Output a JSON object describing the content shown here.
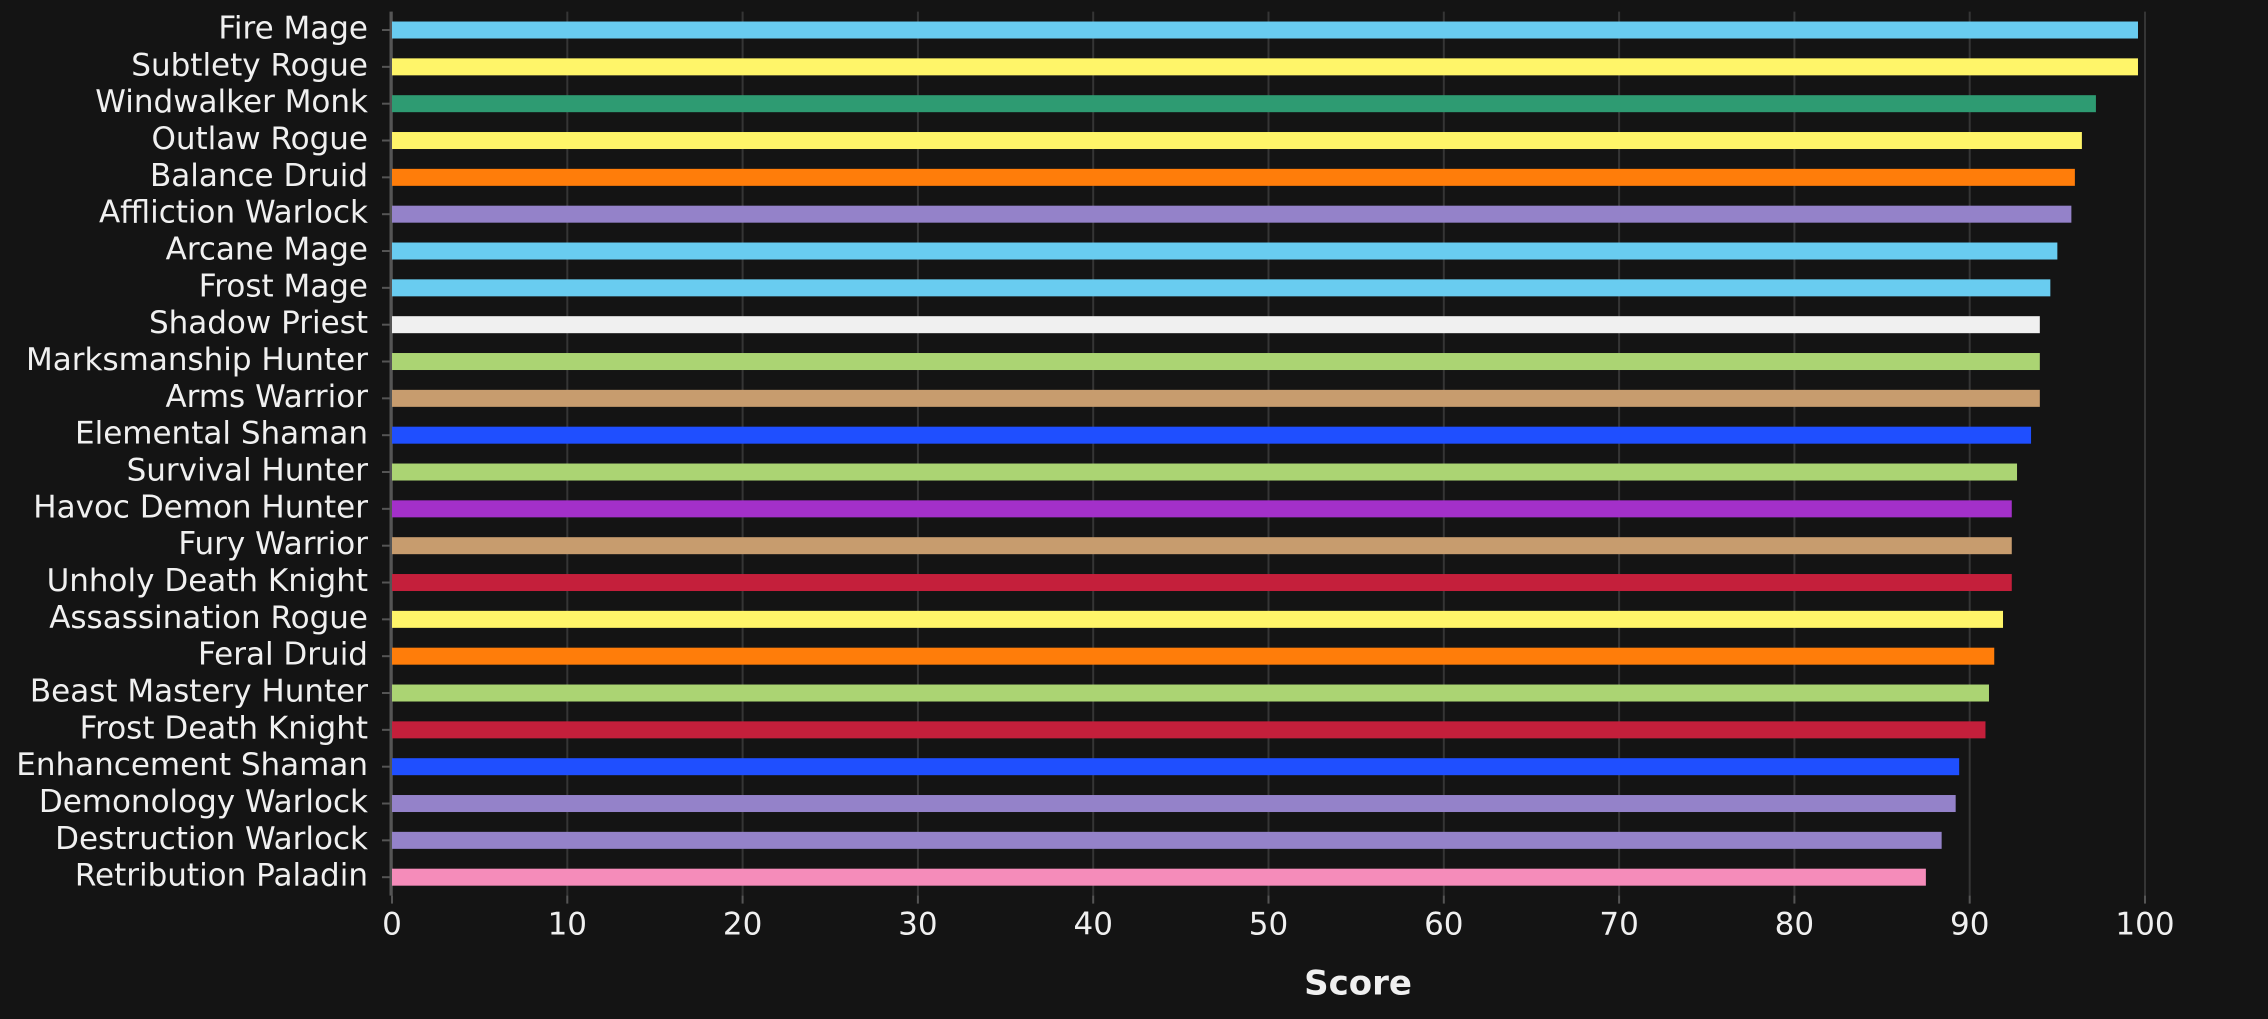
{
  "chart_data": {
    "type": "bar",
    "orientation": "horizontal",
    "x_label": "Score",
    "categories": [
      "Fire Mage",
      "Subtlety Rogue",
      "Windwalker Monk",
      "Outlaw Rogue",
      "Balance Druid",
      "Affliction Warlock",
      "Arcane Mage",
      "Frost Mage",
      "Shadow Priest",
      "Marksmanship Hunter",
      "Arms Warrior",
      "Elemental Shaman",
      "Survival Hunter",
      "Havoc Demon Hunter",
      "Fury Warrior",
      "Unholy Death Knight",
      "Assassination Rogue",
      "Feral Druid",
      "Beast Mastery Hunter",
      "Frost Death Knight",
      "Enhancement Shaman",
      "Demonology Warlock",
      "Destruction Warlock",
      "Retribution Paladin"
    ],
    "values": [
      99.6,
      99.6,
      97.2,
      96.4,
      96.0,
      95.8,
      95.0,
      94.6,
      94.0,
      94.0,
      94.0,
      93.5,
      92.7,
      92.4,
      92.4,
      92.4,
      91.9,
      91.4,
      91.1,
      90.9,
      89.4,
      89.2,
      88.4,
      87.5
    ],
    "colors": [
      "#69ccf0",
      "#fff569",
      "#2e9b72",
      "#fff569",
      "#ff7d0a",
      "#9482c9",
      "#69ccf0",
      "#69ccf0",
      "#f0f0f0",
      "#abd473",
      "#c79c6e",
      "#1f4fff",
      "#abd473",
      "#a330c9",
      "#c79c6e",
      "#c41f3b",
      "#fff569",
      "#ff7d0a",
      "#abd473",
      "#c41f3b",
      "#1f4fff",
      "#9482c9",
      "#9482c9",
      "#f58cba"
    ],
    "xlim": [
      0,
      100
    ],
    "xticks": [
      0,
      10,
      20,
      30,
      40,
      50,
      60,
      70,
      80,
      90,
      100
    ],
    "grid": true
  }
}
